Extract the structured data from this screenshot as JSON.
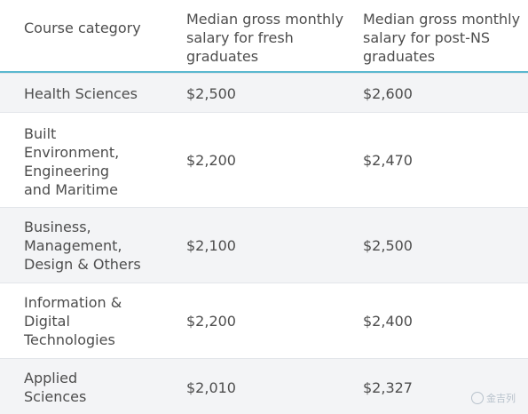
{
  "header": {
    "col1": "Course category",
    "col2": "Median gross monthly salary for fresh graduates",
    "col3": "Median gross monthly salary for post-NS graduates"
  },
  "rows": [
    {
      "category": "Health Sciences",
      "fresh": "$2,500",
      "post_ns": "$2,600"
    },
    {
      "category": "Built Environment, Engineering and Maritime",
      "fresh": "$2,200",
      "post_ns": "$2,470"
    },
    {
      "category": "Business, Management, Design & Others",
      "fresh": "$2,100",
      "post_ns": "$2,500"
    },
    {
      "category": "Information & Digital Technologies",
      "fresh": "$2,200",
      "post_ns": "$2,400"
    },
    {
      "category": "Applied Sciences",
      "fresh": "$2,010",
      "post_ns": "$2,327"
    }
  ],
  "watermark": {
    "text": "金吉列"
  }
}
